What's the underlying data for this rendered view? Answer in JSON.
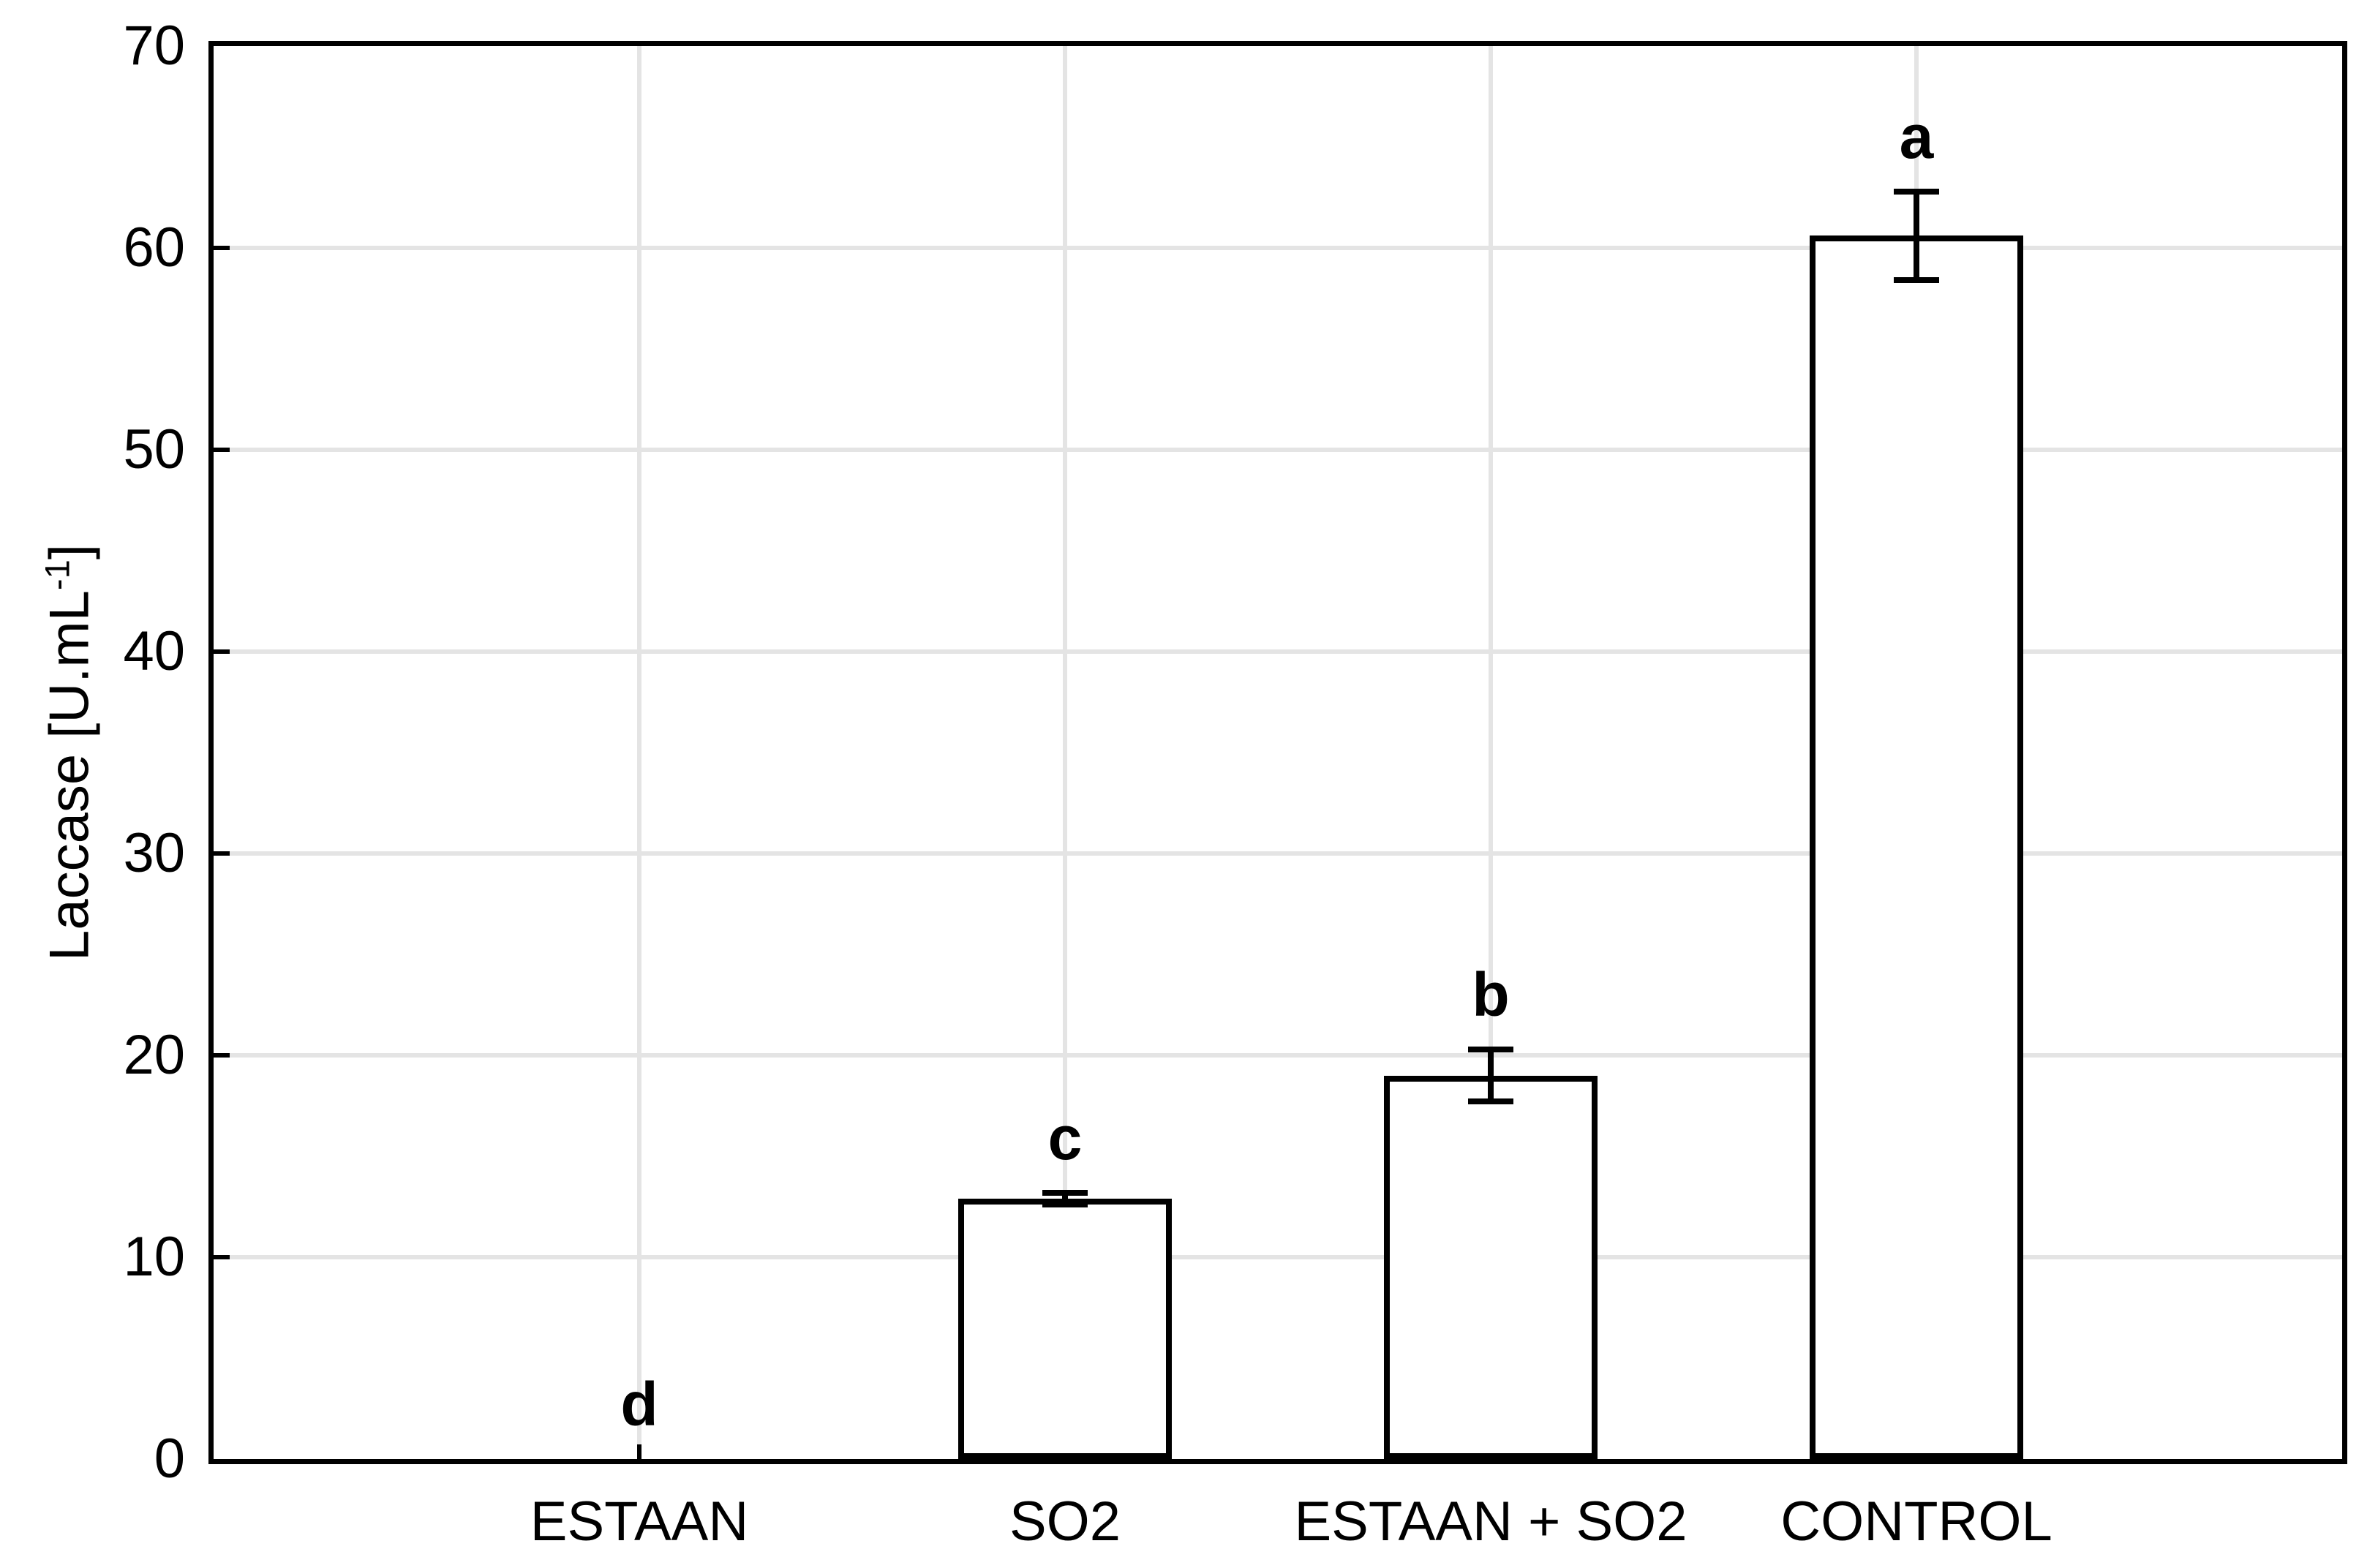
{
  "chart_data": {
    "type": "bar",
    "title": "",
    "ylabel_prefix": "Laccase [U.mL",
    "ylabel_sup": "-1",
    "ylabel_suffix": "]",
    "xlabel": "",
    "categories": [
      "ESTAAN",
      "SO2",
      "ESTAAN + SO2",
      "CONTROL"
    ],
    "values": [
      0,
      12.9,
      19.0,
      60.6
    ],
    "errors": [
      0,
      0.3,
      1.3,
      2.2
    ],
    "sig_letters": [
      "d",
      "c",
      "b",
      "a"
    ],
    "ylim": [
      0,
      70
    ],
    "ytick_step": 10,
    "ytick_labels": [
      "0",
      "10",
      "20",
      "30",
      "40",
      "50",
      "60",
      "70"
    ],
    "grid": true,
    "legend": "none",
    "colors": {
      "bar_fill": "#ffffff",
      "bar_border": "#000000",
      "grid_color": "#e4e4e4",
      "axis_color": "#000000",
      "text_color": "#000000",
      "background": "#ffffff"
    }
  }
}
